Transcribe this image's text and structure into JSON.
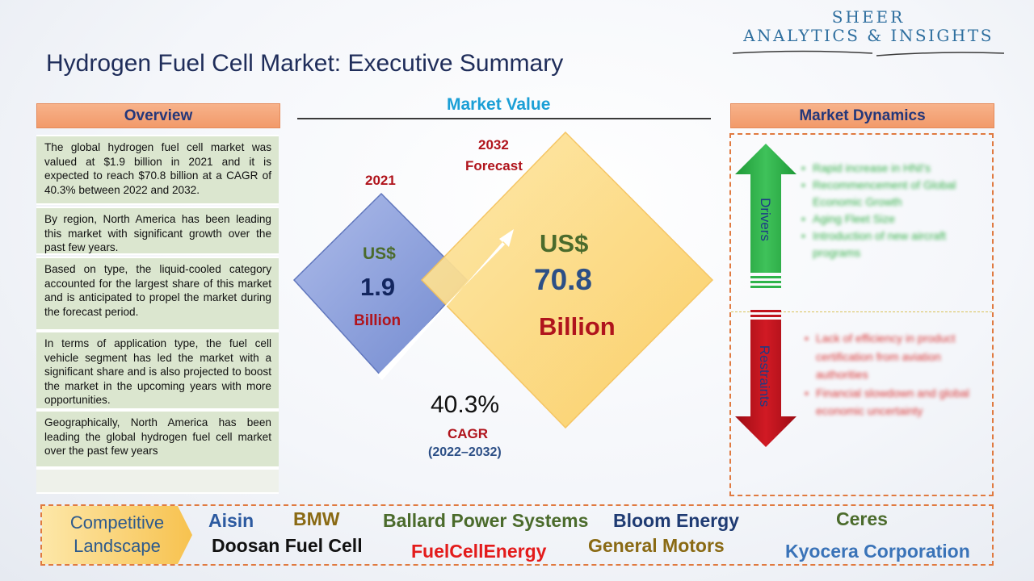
{
  "logo": {
    "line1": "SHEER",
    "line2": "ANALYTICS & INSIGHTS"
  },
  "title": "Hydrogen Fuel Cell Market: Executive Summary",
  "overview": {
    "header": "Overview",
    "paragraphs": [
      "The global hydrogen fuel cell market was valued at $1.9 billion in 2021 and it is expected to reach $70.8 billion at a CAGR of 40.3% between 2022 and 2032.",
      "By region, North America has been leading this market with significant growth over the past few years.",
      "Based on type, the liquid-cooled category accounted for the largest share of this market and is anticipated to propel the market during the forecast period.",
      "In terms of application type, the fuel cell vehicle segment has led the market with a significant share and is also projected to boost the market in the upcoming years with more opportunities.",
      "Geographically, North America has been leading the global hydrogen fuel cell market over the past few years"
    ]
  },
  "market_value": {
    "header": "Market Value",
    "year_2021": "2021",
    "value_2021": {
      "currency": "US$",
      "amount": "1.9",
      "unit": "Billion"
    },
    "year_2032_line1": "2032",
    "year_2032_line2": "Forecast",
    "value_2032": {
      "currency": "US$",
      "amount": "70.8",
      "unit": "Billion"
    },
    "cagr_value": "40.3%",
    "cagr_label": "CAGR",
    "cagr_period": "(2022–2032)"
  },
  "market_dynamics": {
    "header": "Market Dynamics",
    "drivers_label": "Drivers",
    "restraints_label": "Restraints",
    "drivers": [
      "Rapid increase in HNI's",
      "Recommencement of Global Economic Growth",
      "Aging Fleet Size",
      "Introduction of new aircraft programs"
    ],
    "restraints": [
      "Lack of efficiency in product certification from aviation authorities",
      "Financial slowdown and global economic uncertainty"
    ]
  },
  "competitive_landscape": {
    "label_line1": "Competitive",
    "label_line2": "Landscape",
    "companies": [
      "Aisin",
      "BMW",
      "Ballard Power Systems",
      "Bloom Energy",
      "Ceres",
      "Doosan Fuel Cell",
      "FuelCellEnergy",
      "General Motors",
      "Kyocera Corporation"
    ]
  },
  "colors": {
    "header_fill": "#f4a67a",
    "overview_fill": "#dbe6cf",
    "diamond_blue": "#8ea3dc",
    "diamond_yellow": "#fdd877",
    "drivers_green": "#2fb34a",
    "restraints_red": "#c0121c",
    "market_value_title": "#1b9fd6"
  }
}
